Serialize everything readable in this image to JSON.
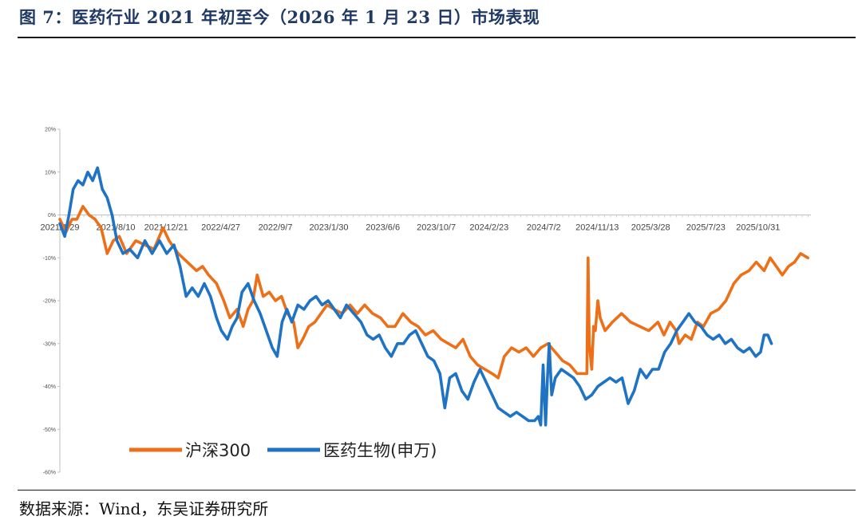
{
  "title": "图 7：医药行业 2021 年初至今（2026 年 1 月 23 日）市场表现",
  "source": "数据来源：Wind，东吴证券研究所",
  "chart_data": {
    "type": "line",
    "ylim": [
      -0.6,
      0.2
    ],
    "yticks": [
      0.2,
      0.1,
      0,
      -0.1,
      -0.2,
      -0.3,
      -0.4,
      -0.5,
      -0.6
    ],
    "ytick_labels": [
      "20%",
      "10%",
      "0%",
      "-10%",
      "-20%",
      "-30%",
      "-40%",
      "-50%",
      "-60%"
    ],
    "xlim": [
      0,
      1237
    ],
    "x_ticks": [
      {
        "label": "2021/1/29",
        "x": 0
      },
      {
        "label": "2021/8/10",
        "x": 92
      },
      {
        "label": "2021/12/21",
        "x": 175
      },
      {
        "label": "2022/4/27",
        "x": 265
      },
      {
        "label": "2022/9/7",
        "x": 355
      },
      {
        "label": "2023/1/30",
        "x": 443
      },
      {
        "label": "2023/6/6",
        "x": 532
      },
      {
        "label": "2023/10/7",
        "x": 620
      },
      {
        "label": "2024/2/23",
        "x": 707
      },
      {
        "label": "2024/7/2",
        "x": 797
      },
      {
        "label": "2024/11/13",
        "x": 885
      },
      {
        "label": "2025/3/28",
        "x": 973
      },
      {
        "label": "2025/7/23",
        "x": 1064
      },
      {
        "label": "2025/10/31",
        "x": 1150
      }
    ],
    "series": [
      {
        "name": "沪深300",
        "color": "#ED7018",
        "points": [
          [
            0,
            -0.01
          ],
          [
            10,
            -0.04
          ],
          [
            20,
            -0.01
          ],
          [
            28,
            -0.01
          ],
          [
            38,
            0.02
          ],
          [
            48,
            0.0
          ],
          [
            58,
            -0.01
          ],
          [
            68,
            -0.03
          ],
          [
            78,
            -0.09
          ],
          [
            88,
            -0.06
          ],
          [
            98,
            -0.05
          ],
          [
            110,
            -0.09
          ],
          [
            125,
            -0.06
          ],
          [
            140,
            -0.07
          ],
          [
            155,
            -0.08
          ],
          [
            170,
            -0.03
          ],
          [
            180,
            -0.06
          ],
          [
            195,
            -0.09
          ],
          [
            210,
            -0.11
          ],
          [
            225,
            -0.13
          ],
          [
            235,
            -0.12
          ],
          [
            245,
            -0.14
          ],
          [
            258,
            -0.16
          ],
          [
            270,
            -0.2
          ],
          [
            280,
            -0.24
          ],
          [
            292,
            -0.22
          ],
          [
            302,
            -0.26
          ],
          [
            310,
            -0.22
          ],
          [
            318,
            -0.2
          ],
          [
            325,
            -0.14
          ],
          [
            335,
            -0.19
          ],
          [
            345,
            -0.18
          ],
          [
            355,
            -0.2
          ],
          [
            365,
            -0.19
          ],
          [
            375,
            -0.23
          ],
          [
            385,
            -0.25
          ],
          [
            392,
            -0.31
          ],
          [
            400,
            -0.29
          ],
          [
            410,
            -0.26
          ],
          [
            420,
            -0.25
          ],
          [
            430,
            -0.23
          ],
          [
            440,
            -0.21
          ],
          [
            452,
            -0.22
          ],
          [
            465,
            -0.23
          ],
          [
            478,
            -0.21
          ],
          [
            490,
            -0.23
          ],
          [
            502,
            -0.21
          ],
          [
            515,
            -0.23
          ],
          [
            528,
            -0.24
          ],
          [
            540,
            -0.26
          ],
          [
            552,
            -0.26
          ],
          [
            565,
            -0.23
          ],
          [
            578,
            -0.25
          ],
          [
            590,
            -0.26
          ],
          [
            602,
            -0.28
          ],
          [
            615,
            -0.27
          ],
          [
            628,
            -0.29
          ],
          [
            640,
            -0.3
          ],
          [
            652,
            -0.31
          ],
          [
            664,
            -0.29
          ],
          [
            676,
            -0.33
          ],
          [
            688,
            -0.35
          ],
          [
            700,
            -0.36
          ],
          [
            712,
            -0.37
          ],
          [
            722,
            -0.38
          ],
          [
            732,
            -0.33
          ],
          [
            744,
            -0.31
          ],
          [
            756,
            -0.32
          ],
          [
            768,
            -0.31
          ],
          [
            780,
            -0.33
          ],
          [
            792,
            -0.31
          ],
          [
            804,
            -0.3
          ],
          [
            816,
            -0.32
          ],
          [
            828,
            -0.34
          ],
          [
            840,
            -0.35
          ],
          [
            852,
            -0.37
          ],
          [
            862,
            -0.37
          ],
          [
            868,
            -0.37
          ],
          [
            870,
            -0.1
          ],
          [
            872,
            -0.3
          ],
          [
            876,
            -0.36
          ],
          [
            879,
            -0.26
          ],
          [
            882,
            -0.27
          ],
          [
            886,
            -0.2
          ],
          [
            890,
            -0.24
          ],
          [
            898,
            -0.27
          ],
          [
            910,
            -0.25
          ],
          [
            925,
            -0.23
          ],
          [
            940,
            -0.25
          ],
          [
            955,
            -0.26
          ],
          [
            970,
            -0.27
          ],
          [
            985,
            -0.25
          ],
          [
            995,
            -0.28
          ],
          [
            1005,
            -0.25
          ],
          [
            1015,
            -0.27
          ],
          [
            1020,
            -0.3
          ],
          [
            1030,
            -0.28
          ],
          [
            1040,
            -0.29
          ],
          [
            1050,
            -0.25
          ],
          [
            1060,
            -0.26
          ],
          [
            1072,
            -0.23
          ],
          [
            1085,
            -0.22
          ],
          [
            1097,
            -0.2
          ],
          [
            1110,
            -0.16
          ],
          [
            1122,
            -0.14
          ],
          [
            1135,
            -0.13
          ],
          [
            1147,
            -0.11
          ],
          [
            1160,
            -0.13
          ],
          [
            1170,
            -0.1
          ],
          [
            1180,
            -0.12
          ],
          [
            1190,
            -0.14
          ],
          [
            1200,
            -0.12
          ],
          [
            1210,
            -0.11
          ],
          [
            1220,
            -0.09
          ],
          [
            1232,
            -0.1
          ]
        ]
      },
      {
        "name": "医药生物(申万)",
        "color": "#1F73C5",
        "points": [
          [
            0,
            -0.02
          ],
          [
            8,
            -0.05
          ],
          [
            15,
            0.0
          ],
          [
            22,
            0.06
          ],
          [
            30,
            0.08
          ],
          [
            38,
            0.07
          ],
          [
            46,
            0.1
          ],
          [
            54,
            0.08
          ],
          [
            62,
            0.11
          ],
          [
            70,
            0.06
          ],
          [
            78,
            0.04
          ],
          [
            86,
            0.0
          ],
          [
            94,
            -0.06
          ],
          [
            104,
            -0.09
          ],
          [
            115,
            -0.08
          ],
          [
            128,
            -0.1
          ],
          [
            140,
            -0.06
          ],
          [
            152,
            -0.09
          ],
          [
            164,
            -0.06
          ],
          [
            176,
            -0.09
          ],
          [
            188,
            -0.07
          ],
          [
            198,
            -0.12
          ],
          [
            208,
            -0.19
          ],
          [
            218,
            -0.17
          ],
          [
            228,
            -0.19
          ],
          [
            238,
            -0.16
          ],
          [
            248,
            -0.19
          ],
          [
            258,
            -0.24
          ],
          [
            266,
            -0.27
          ],
          [
            276,
            -0.29
          ],
          [
            284,
            -0.26
          ],
          [
            292,
            -0.24
          ],
          [
            300,
            -0.18
          ],
          [
            310,
            -0.16
          ],
          [
            320,
            -0.2
          ],
          [
            330,
            -0.23
          ],
          [
            340,
            -0.27
          ],
          [
            350,
            -0.31
          ],
          [
            358,
            -0.33
          ],
          [
            366,
            -0.25
          ],
          [
            374,
            -0.22
          ],
          [
            382,
            -0.25
          ],
          [
            392,
            -0.21
          ],
          [
            402,
            -0.22
          ],
          [
            412,
            -0.2
          ],
          [
            422,
            -0.19
          ],
          [
            432,
            -0.21
          ],
          [
            442,
            -0.2
          ],
          [
            452,
            -0.22
          ],
          [
            462,
            -0.24
          ],
          [
            472,
            -0.21
          ],
          [
            484,
            -0.23
          ],
          [
            496,
            -0.25
          ],
          [
            506,
            -0.28
          ],
          [
            516,
            -0.29
          ],
          [
            526,
            -0.28
          ],
          [
            536,
            -0.31
          ],
          [
            546,
            -0.33
          ],
          [
            556,
            -0.3
          ],
          [
            566,
            -0.3
          ],
          [
            576,
            -0.28
          ],
          [
            586,
            -0.27
          ],
          [
            596,
            -0.3
          ],
          [
            606,
            -0.33
          ],
          [
            616,
            -0.34
          ],
          [
            626,
            -0.37
          ],
          [
            634,
            -0.45
          ],
          [
            642,
            -0.38
          ],
          [
            652,
            -0.37
          ],
          [
            662,
            -0.41
          ],
          [
            672,
            -0.43
          ],
          [
            682,
            -0.39
          ],
          [
            692,
            -0.36
          ],
          [
            702,
            -0.39
          ],
          [
            712,
            -0.42
          ],
          [
            722,
            -0.45
          ],
          [
            732,
            -0.46
          ],
          [
            742,
            -0.47
          ],
          [
            752,
            -0.46
          ],
          [
            762,
            -0.47
          ],
          [
            772,
            -0.48
          ],
          [
            782,
            -0.48
          ],
          [
            788,
            -0.47
          ],
          [
            792,
            -0.49
          ],
          [
            796,
            -0.35
          ],
          [
            800,
            -0.49
          ],
          [
            803,
            -0.38
          ],
          [
            806,
            -0.3
          ],
          [
            810,
            -0.42
          ],
          [
            816,
            -0.38
          ],
          [
            826,
            -0.36
          ],
          [
            836,
            -0.37
          ],
          [
            846,
            -0.38
          ],
          [
            856,
            -0.4
          ],
          [
            866,
            -0.43
          ],
          [
            876,
            -0.42
          ],
          [
            886,
            -0.4
          ],
          [
            896,
            -0.39
          ],
          [
            906,
            -0.38
          ],
          [
            916,
            -0.39
          ],
          [
            926,
            -0.38
          ],
          [
            936,
            -0.44
          ],
          [
            946,
            -0.41
          ],
          [
            956,
            -0.36
          ],
          [
            966,
            -0.38
          ],
          [
            976,
            -0.36
          ],
          [
            986,
            -0.36
          ],
          [
            996,
            -0.32
          ],
          [
            1006,
            -0.3
          ],
          [
            1016,
            -0.27
          ],
          [
            1026,
            -0.25
          ],
          [
            1036,
            -0.23
          ],
          [
            1046,
            -0.25
          ],
          [
            1056,
            -0.26
          ],
          [
            1066,
            -0.28
          ],
          [
            1076,
            -0.29
          ],
          [
            1086,
            -0.28
          ],
          [
            1096,
            -0.3
          ],
          [
            1106,
            -0.29
          ],
          [
            1116,
            -0.31
          ],
          [
            1126,
            -0.32
          ],
          [
            1136,
            -0.31
          ],
          [
            1146,
            -0.33
          ],
          [
            1154,
            -0.32
          ],
          [
            1160,
            -0.28
          ],
          [
            1166,
            -0.28
          ],
          [
            1172,
            -0.3
          ]
        ]
      }
    ],
    "legend": "bottom-left"
  }
}
